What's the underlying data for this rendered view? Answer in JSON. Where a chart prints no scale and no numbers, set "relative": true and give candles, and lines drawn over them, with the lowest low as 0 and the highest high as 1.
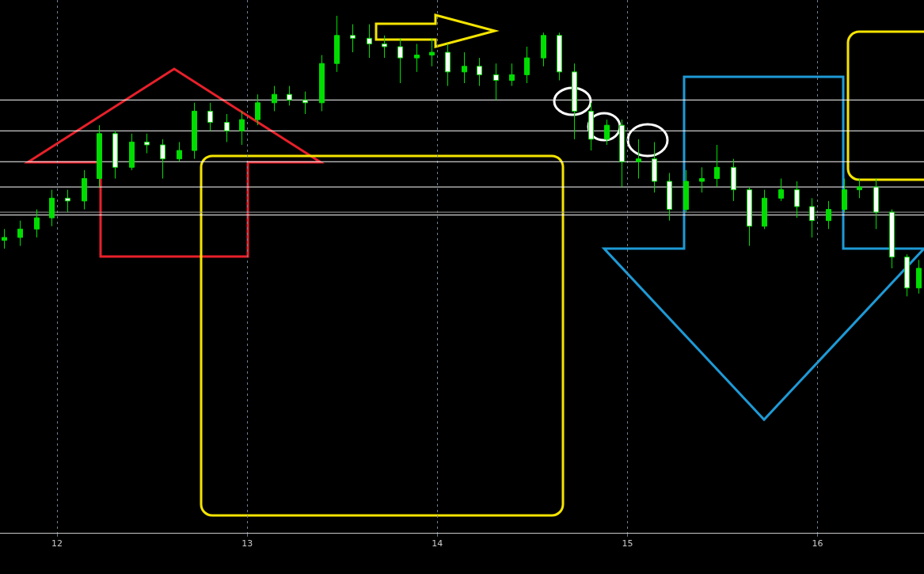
{
  "chart_data": {
    "type": "candlestick",
    "relative": true,
    "color": "#00dd00",
    "xlim": [
      11.7,
      16.56
    ],
    "xticks": [
      12,
      13,
      14,
      15,
      16
    ],
    "grid": "x",
    "legend": false,
    "x": [
      11.72,
      11.805,
      11.89,
      11.97,
      12.055,
      12.14,
      12.22,
      12.305,
      12.39,
      12.47,
      12.555,
      12.64,
      12.72,
      12.805,
      12.89,
      12.97,
      13.055,
      13.14,
      13.22,
      13.305,
      13.39,
      13.47,
      13.555,
      13.64,
      13.72,
      13.805,
      13.89,
      13.97,
      14.055,
      14.14,
      14.22,
      14.305,
      14.39,
      14.47,
      14.555,
      14.64,
      14.72,
      14.805,
      14.89,
      14.97,
      15.055,
      15.14,
      15.22,
      15.305,
      15.39,
      15.47,
      15.555,
      15.64,
      15.72,
      15.805,
      15.89,
      15.97,
      16.055,
      16.14,
      16.22,
      16.305,
      16.39,
      16.47,
      16.53
    ],
    "ohlc": [
      [
        0.2,
        0.24,
        0.17,
        0.21
      ],
      [
        0.21,
        0.27,
        0.18,
        0.24
      ],
      [
        0.24,
        0.31,
        0.21,
        0.28
      ],
      [
        0.28,
        0.38,
        0.25,
        0.35
      ],
      [
        0.35,
        0.38,
        0.3,
        0.34
      ],
      [
        0.34,
        0.45,
        0.31,
        0.42
      ],
      [
        0.42,
        0.61,
        0.39,
        0.58
      ],
      [
        0.58,
        0.59,
        0.42,
        0.46
      ],
      [
        0.46,
        0.58,
        0.45,
        0.55
      ],
      [
        0.55,
        0.58,
        0.51,
        0.54
      ],
      [
        0.54,
        0.56,
        0.42,
        0.49
      ],
      [
        0.49,
        0.55,
        0.48,
        0.52
      ],
      [
        0.52,
        0.69,
        0.49,
        0.66
      ],
      [
        0.66,
        0.69,
        0.59,
        0.62
      ],
      [
        0.62,
        0.65,
        0.55,
        0.59
      ],
      [
        0.59,
        0.66,
        0.54,
        0.63
      ],
      [
        0.63,
        0.72,
        0.61,
        0.69
      ],
      [
        0.69,
        0.75,
        0.66,
        0.72
      ],
      [
        0.72,
        0.75,
        0.68,
        0.7
      ],
      [
        0.7,
        0.73,
        0.65,
        0.69
      ],
      [
        0.69,
        0.86,
        0.66,
        0.83
      ],
      [
        0.83,
        1.0,
        0.8,
        0.93
      ],
      [
        0.93,
        0.97,
        0.87,
        0.92
      ],
      [
        0.92,
        0.97,
        0.85,
        0.9
      ],
      [
        0.9,
        0.93,
        0.85,
        0.89
      ],
      [
        0.89,
        0.92,
        0.76,
        0.85
      ],
      [
        0.85,
        0.9,
        0.8,
        0.86
      ],
      [
        0.86,
        0.92,
        0.82,
        0.87
      ],
      [
        0.87,
        0.9,
        0.75,
        0.8
      ],
      [
        0.8,
        0.87,
        0.76,
        0.82
      ],
      [
        0.82,
        0.85,
        0.75,
        0.79
      ],
      [
        0.79,
        0.83,
        0.7,
        0.77
      ],
      [
        0.77,
        0.83,
        0.75,
        0.79
      ],
      [
        0.79,
        0.89,
        0.76,
        0.85
      ],
      [
        0.85,
        0.94,
        0.82,
        0.93
      ],
      [
        0.93,
        0.94,
        0.77,
        0.8
      ],
      [
        0.8,
        0.83,
        0.56,
        0.66
      ],
      [
        0.66,
        0.69,
        0.52,
        0.56
      ],
      [
        0.56,
        0.63,
        0.54,
        0.61
      ],
      [
        0.61,
        0.63,
        0.39,
        0.48
      ],
      [
        0.48,
        0.56,
        0.42,
        0.49
      ],
      [
        0.49,
        0.55,
        0.37,
        0.41
      ],
      [
        0.41,
        0.44,
        0.27,
        0.31
      ],
      [
        0.31,
        0.45,
        0.3,
        0.41
      ],
      [
        0.41,
        0.46,
        0.37,
        0.42
      ],
      [
        0.42,
        0.54,
        0.39,
        0.46
      ],
      [
        0.46,
        0.49,
        0.34,
        0.38
      ],
      [
        0.38,
        0.39,
        0.18,
        0.25
      ],
      [
        0.25,
        0.38,
        0.24,
        0.35
      ],
      [
        0.35,
        0.42,
        0.34,
        0.38
      ],
      [
        0.38,
        0.41,
        0.28,
        0.32
      ],
      [
        0.32,
        0.35,
        0.21,
        0.27
      ],
      [
        0.27,
        0.34,
        0.24,
        0.31
      ],
      [
        0.31,
        0.42,
        0.3,
        0.38
      ],
      [
        0.38,
        0.42,
        0.35,
        0.39
      ],
      [
        0.39,
        0.42,
        0.24,
        0.3
      ],
      [
        0.3,
        0.31,
        0.1,
        0.14
      ],
      [
        0.14,
        0.15,
        0.0,
        0.03
      ],
      [
        0.03,
        0.13,
        0.01,
        0.1
      ]
    ],
    "colors": [
      "#00dd00",
      "#00dd00",
      "#00dd00",
      "#00dd00",
      "#ffffff",
      "#00dd00",
      "#00dd00",
      "#ffffff",
      "#00dd00",
      "#ffffff",
      "#ffffff",
      "#00dd00",
      "#00dd00",
      "#ffffff",
      "#ffffff",
      "#00dd00",
      "#00dd00",
      "#00dd00",
      "#ffffff",
      "#ffffff",
      "#00dd00",
      "#00dd00",
      "#ffffff",
      "#ffffff",
      "#ffffff",
      "#ffffff",
      "#00dd00",
      "#00dd00",
      "#ffffff",
      "#00dd00",
      "#ffffff",
      "#ffffff",
      "#00dd00",
      "#00dd00",
      "#00dd00",
      "#ffffff",
      "#ffffff",
      "#ffffff",
      "#00dd00",
      "#ffffff",
      "#00dd00",
      "#ffffff",
      "#ffffff",
      "#00dd00",
      "#00dd00",
      "#00dd00",
      "#ffffff",
      "#ffffff",
      "#00dd00",
      "#00dd00",
      "#ffffff",
      "#ffffff",
      "#00dd00",
      "#00dd00",
      "#00dd00",
      "#ffffff",
      "#ffffff",
      "#ffffff",
      "#00dd00"
    ],
    "ref_lines": [
      {
        "axis": "y",
        "value": 0.7,
        "color": "#ffffff"
      },
      {
        "axis": "y",
        "value": 0.59,
        "color": "#ffffff"
      },
      {
        "axis": "y",
        "value": 0.48,
        "color": "#ffffff"
      },
      {
        "axis": "y",
        "value": 0.39,
        "color": "#ffffff"
      },
      {
        "axis": "y",
        "value": 0.3,
        "color": "#a0a0a0"
      },
      {
        "axis": "y",
        "value": 0.29,
        "color": "#ffffff"
      }
    ]
  }
}
